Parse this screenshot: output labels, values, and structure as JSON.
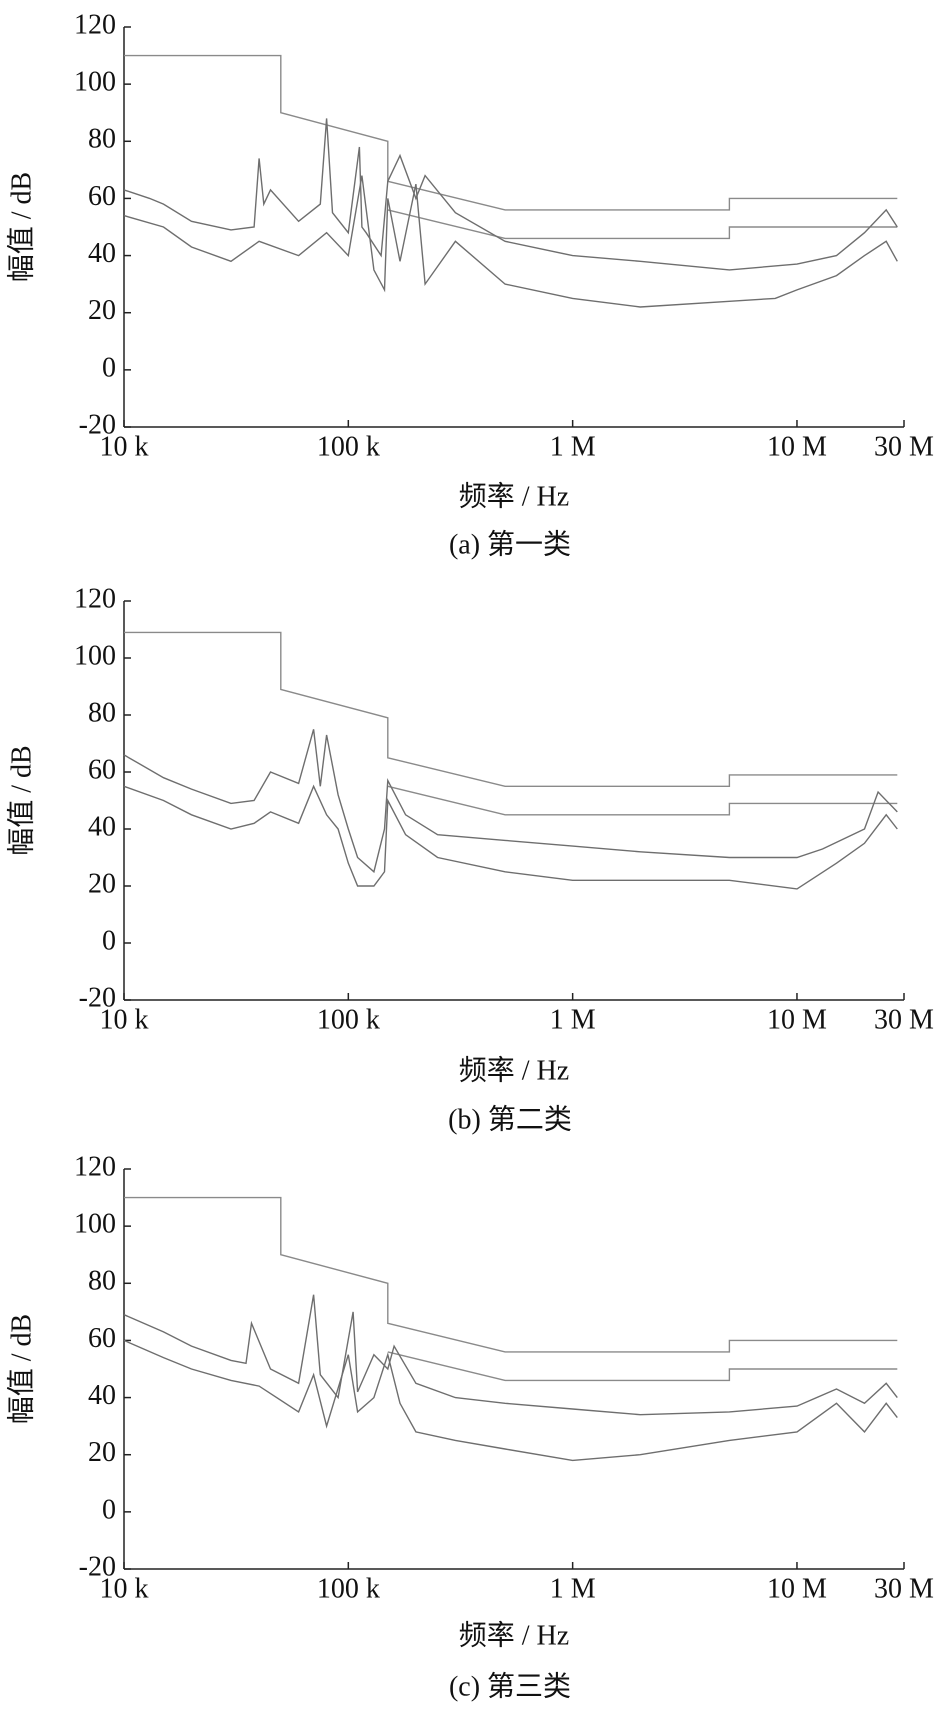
{
  "chart_data": [
    {
      "type": "line",
      "caption": "(a)  第一类",
      "xlabel": "频率 / Hz",
      "ylabel": "幅值 / dB",
      "xlog": true,
      "xlim": [
        10000,
        30000000
      ],
      "ylim": [
        -20,
        120
      ],
      "xticks": [
        {
          "value": 10000,
          "label": "10 k"
        },
        {
          "value": 100000,
          "label": "100 k"
        },
        {
          "value": 1000000,
          "label": "1 M"
        },
        {
          "value": 10000000,
          "label": "10 M"
        },
        {
          "value": 30000000,
          "label": "30 M"
        }
      ],
      "yticks": [
        -20,
        0,
        20,
        40,
        60,
        80,
        100,
        120
      ],
      "series": [
        {
          "color": "#8a8a8a",
          "x": [
            10000,
            50000,
            50000,
            150000,
            150000,
            500000,
            5000000,
            5000000,
            28000000
          ],
          "values": [
            110,
            110,
            90,
            80,
            66,
            56,
            56,
            60,
            60
          ]
        },
        {
          "color": "#8a8a8a",
          "x": [
            150000,
            500000,
            5000000,
            5000000,
            28000000
          ],
          "values": [
            56,
            46,
            46,
            50,
            50
          ]
        },
        {
          "color": "#6e6e6e",
          "x": [
            10000,
            13000,
            15000,
            20000,
            30000,
            38000,
            40000,
            42000,
            45000,
            60000,
            75000,
            80000,
            85000,
            100000,
            112000,
            115000,
            120000,
            140000,
            150000,
            170000,
            200000,
            220000,
            300000,
            500000,
            1000000,
            2000000,
            5000000,
            10000000,
            15000000,
            20000000,
            25000000,
            28000000
          ],
          "values": [
            63,
            60,
            58,
            52,
            49,
            50,
            74,
            58,
            63,
            52,
            58,
            88,
            55,
            48,
            78,
            50,
            48,
            40,
            66,
            75,
            60,
            68,
            55,
            45,
            40,
            38,
            35,
            37,
            40,
            48,
            56,
            50
          ]
        },
        {
          "color": "#6e6e6e",
          "x": [
            10000,
            15000,
            20000,
            30000,
            40000,
            60000,
            80000,
            100000,
            115000,
            130000,
            145000,
            150000,
            170000,
            200000,
            220000,
            300000,
            500000,
            1000000,
            2000000,
            5000000,
            8000000,
            10000000,
            15000000,
            20000000,
            25000000,
            28000000
          ],
          "values": [
            54,
            50,
            43,
            38,
            45,
            40,
            48,
            40,
            68,
            35,
            28,
            60,
            38,
            65,
            30,
            45,
            30,
            25,
            22,
            24,
            25,
            28,
            33,
            40,
            45,
            38
          ]
        }
      ]
    },
    {
      "type": "line",
      "caption": "(b)  第二类",
      "xlabel": "频率 / Hz",
      "ylabel": "幅值 / dB",
      "xlog": true,
      "xlim": [
        10000,
        30000000
      ],
      "ylim": [
        -20,
        120
      ],
      "xticks": [
        {
          "value": 10000,
          "label": "10 k"
        },
        {
          "value": 100000,
          "label": "100 k"
        },
        {
          "value": 1000000,
          "label": "1 M"
        },
        {
          "value": 10000000,
          "label": "10 M"
        },
        {
          "value": 30000000,
          "label": "30 M"
        }
      ],
      "yticks": [
        -20,
        0,
        20,
        40,
        60,
        80,
        100,
        120
      ],
      "series": [
        {
          "color": "#8a8a8a",
          "x": [
            10000,
            50000,
            50000,
            150000,
            150000,
            500000,
            5000000,
            5000000,
            28000000
          ],
          "values": [
            109,
            109,
            89,
            79,
            65,
            55,
            55,
            59,
            59
          ]
        },
        {
          "color": "#8a8a8a",
          "x": [
            150000,
            500000,
            5000000,
            5000000,
            28000000
          ],
          "values": [
            55,
            45,
            45,
            49,
            49
          ]
        },
        {
          "color": "#6e6e6e",
          "x": [
            10000,
            15000,
            20000,
            30000,
            38000,
            45000,
            60000,
            70000,
            75000,
            80000,
            90000,
            100000,
            110000,
            130000,
            145000,
            150000,
            180000,
            250000,
            500000,
            1000000,
            2000000,
            5000000,
            10000000,
            13000000,
            20000000,
            23000000,
            28000000
          ],
          "values": [
            66,
            58,
            54,
            49,
            50,
            60,
            56,
            75,
            55,
            73,
            52,
            40,
            30,
            25,
            40,
            57,
            45,
            38,
            36,
            34,
            32,
            30,
            30,
            33,
            40,
            53,
            46
          ]
        },
        {
          "color": "#6e6e6e",
          "x": [
            10000,
            15000,
            20000,
            30000,
            38000,
            45000,
            60000,
            70000,
            80000,
            90000,
            100000,
            110000,
            130000,
            145000,
            150000,
            180000,
            250000,
            500000,
            1000000,
            2000000,
            5000000,
            10000000,
            15000000,
            20000000,
            25000000,
            28000000
          ],
          "values": [
            55,
            50,
            45,
            40,
            42,
            46,
            42,
            55,
            45,
            40,
            28,
            20,
            20,
            25,
            50,
            38,
            30,
            25,
            22,
            22,
            22,
            19,
            28,
            35,
            45,
            40
          ]
        }
      ]
    },
    {
      "type": "line",
      "caption": "(c)  第三类",
      "xlabel": "频率 / Hz",
      "ylabel": "幅值 / dB",
      "xlog": true,
      "xlim": [
        10000,
        30000000
      ],
      "ylim": [
        -20,
        120
      ],
      "xticks": [
        {
          "value": 10000,
          "label": "10 k"
        },
        {
          "value": 100000,
          "label": "100 k"
        },
        {
          "value": 1000000,
          "label": "1 M"
        },
        {
          "value": 10000000,
          "label": "10 M"
        },
        {
          "value": 30000000,
          "label": "30 M"
        }
      ],
      "yticks": [
        -20,
        0,
        20,
        40,
        60,
        80,
        100,
        120
      ],
      "series": [
        {
          "color": "#8a8a8a",
          "x": [
            10000,
            50000,
            50000,
            150000,
            150000,
            500000,
            5000000,
            5000000,
            28000000
          ],
          "values": [
            110,
            110,
            90,
            80,
            66,
            56,
            56,
            60,
            60
          ]
        },
        {
          "color": "#8a8a8a",
          "x": [
            150000,
            500000,
            5000000,
            5000000,
            28000000
          ],
          "values": [
            56,
            46,
            46,
            50,
            50
          ]
        },
        {
          "color": "#6e6e6e",
          "x": [
            10000,
            15000,
            20000,
            30000,
            35000,
            37000,
            45000,
            60000,
            70000,
            75000,
            90000,
            105000,
            110000,
            130000,
            150000,
            160000,
            200000,
            300000,
            500000,
            1000000,
            2000000,
            5000000,
            10000000,
            15000000,
            20000000,
            25000000,
            28000000
          ],
          "values": [
            69,
            63,
            58,
            53,
            52,
            66,
            50,
            45,
            76,
            48,
            40,
            70,
            42,
            55,
            50,
            58,
            45,
            40,
            38,
            36,
            34,
            35,
            37,
            43,
            38,
            45,
            40
          ]
        },
        {
          "color": "#6e6e6e",
          "x": [
            10000,
            15000,
            20000,
            30000,
            40000,
            60000,
            70000,
            80000,
            100000,
            110000,
            130000,
            150000,
            170000,
            200000,
            300000,
            500000,
            1000000,
            2000000,
            5000000,
            10000000,
            15000000,
            20000000,
            25000000,
            28000000
          ],
          "values": [
            60,
            54,
            50,
            46,
            44,
            35,
            48,
            30,
            55,
            35,
            40,
            55,
            38,
            28,
            25,
            22,
            18,
            20,
            25,
            28,
            38,
            28,
            38,
            33
          ]
        }
      ]
    }
  ]
}
